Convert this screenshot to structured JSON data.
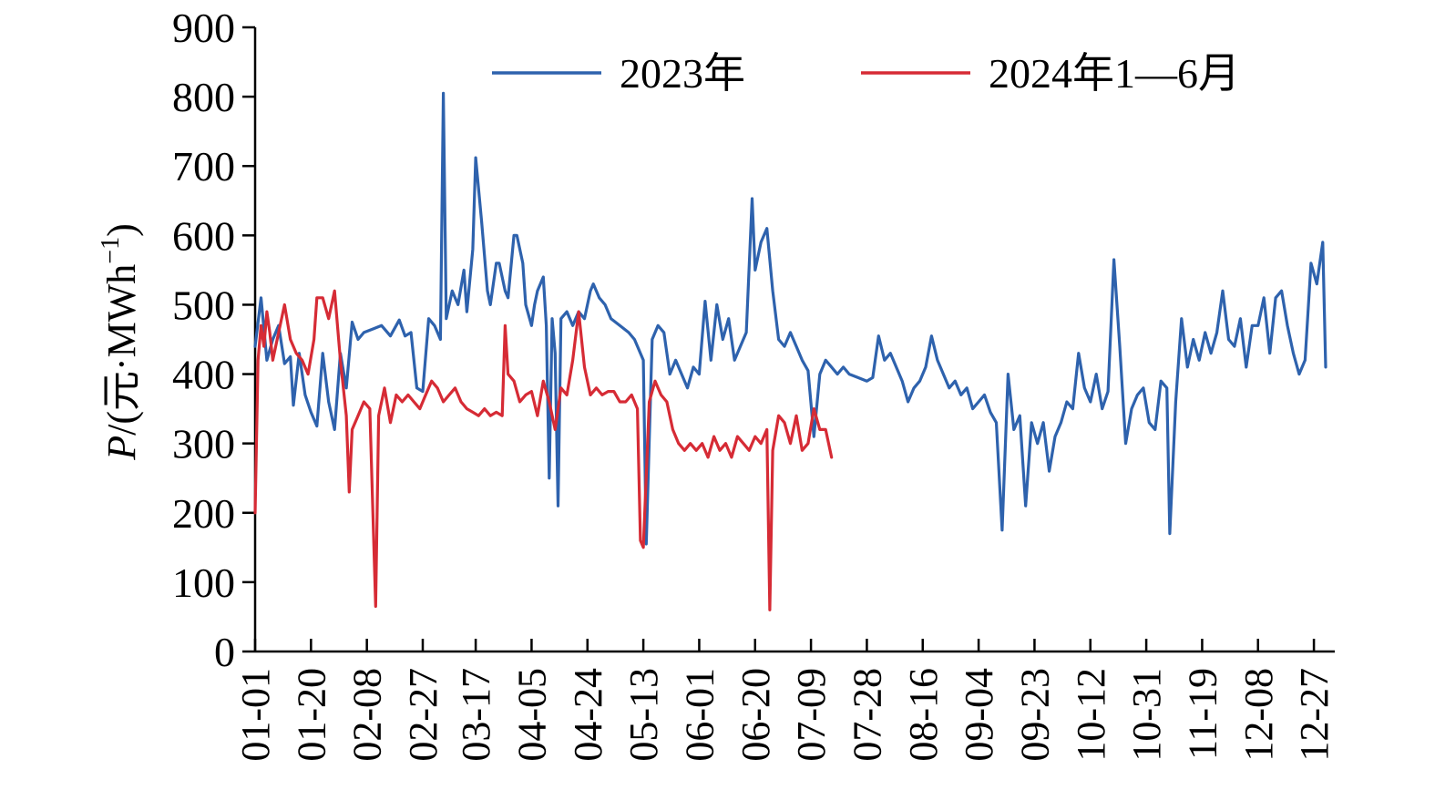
{
  "chart_data": {
    "type": "line",
    "xlabel": "",
    "ylabel": {
      "var": "P",
      "prefix": "/(元·MWh",
      "sup": "−1",
      "suffix": ")"
    },
    "ylim": [
      0,
      900
    ],
    "yticks": [
      "0",
      "100",
      "200",
      "300",
      "400",
      "500",
      "600",
      "700",
      "800",
      "900"
    ],
    "x_tick_labels": [
      "01-01",
      "01-20",
      "02-08",
      "02-27",
      "03-17",
      "04-05",
      "04-24",
      "05-13",
      "06-01",
      "06-20",
      "07-09",
      "07-28",
      "08-16",
      "09-04",
      "09-23",
      "10-12",
      "10-31",
      "11-19",
      "12-08",
      "12-27"
    ],
    "x_tick_days": [
      0,
      19,
      38,
      57,
      75,
      94,
      113,
      132,
      151,
      170,
      189,
      208,
      227,
      246,
      265,
      284,
      303,
      322,
      341,
      360
    ],
    "x_unit": "day of year (0 = 01-01)",
    "xlim": [
      0,
      364
    ],
    "legend_position": "top",
    "grid": false,
    "series": [
      {
        "name": "2023年",
        "color": "#2e62ad",
        "points": [
          [
            0,
            440
          ],
          [
            2,
            510
          ],
          [
            4,
            420
          ],
          [
            6,
            450
          ],
          [
            8,
            470
          ],
          [
            10,
            415
          ],
          [
            12,
            425
          ],
          [
            13,
            355
          ],
          [
            15,
            430
          ],
          [
            17,
            370
          ],
          [
            19,
            345
          ],
          [
            21,
            325
          ],
          [
            23,
            430
          ],
          [
            25,
            360
          ],
          [
            27,
            320
          ],
          [
            29,
            430
          ],
          [
            31,
            380
          ],
          [
            33,
            475
          ],
          [
            35,
            450
          ],
          [
            37,
            460
          ],
          [
            40,
            465
          ],
          [
            43,
            470
          ],
          [
            46,
            455
          ],
          [
            49,
            478
          ],
          [
            51,
            455
          ],
          [
            53,
            460
          ],
          [
            55,
            380
          ],
          [
            57,
            375
          ],
          [
            59,
            480
          ],
          [
            61,
            470
          ],
          [
            63,
            450
          ],
          [
            64,
            805
          ],
          [
            65,
            480
          ],
          [
            67,
            520
          ],
          [
            69,
            500
          ],
          [
            71,
            550
          ],
          [
            72,
            490
          ],
          [
            74,
            580
          ],
          [
            75,
            712
          ],
          [
            77,
            620
          ],
          [
            79,
            520
          ],
          [
            80,
            500
          ],
          [
            82,
            560
          ],
          [
            83,
            560
          ],
          [
            85,
            520
          ],
          [
            86,
            510
          ],
          [
            88,
            600
          ],
          [
            89,
            600
          ],
          [
            91,
            560
          ],
          [
            92,
            500
          ],
          [
            94,
            470
          ],
          [
            95,
            500
          ],
          [
            96,
            520
          ],
          [
            98,
            540
          ],
          [
            99,
            470
          ],
          [
            100,
            250
          ],
          [
            101,
            480
          ],
          [
            102,
            430
          ],
          [
            103,
            210
          ],
          [
            104,
            480
          ],
          [
            106,
            490
          ],
          [
            108,
            470
          ],
          [
            110,
            490
          ],
          [
            112,
            480
          ],
          [
            114,
            520
          ],
          [
            115,
            530
          ],
          [
            117,
            510
          ],
          [
            119,
            500
          ],
          [
            121,
            480
          ],
          [
            124,
            470
          ],
          [
            127,
            460
          ],
          [
            129,
            450
          ],
          [
            131,
            430
          ],
          [
            132,
            420
          ],
          [
            133,
            155
          ],
          [
            135,
            450
          ],
          [
            137,
            470
          ],
          [
            139,
            460
          ],
          [
            141,
            400
          ],
          [
            143,
            420
          ],
          [
            145,
            400
          ],
          [
            147,
            380
          ],
          [
            149,
            410
          ],
          [
            151,
            400
          ],
          [
            153,
            505
          ],
          [
            155,
            420
          ],
          [
            157,
            500
          ],
          [
            159,
            450
          ],
          [
            161,
            480
          ],
          [
            163,
            420
          ],
          [
            165,
            440
          ],
          [
            167,
            460
          ],
          [
            169,
            653
          ],
          [
            170,
            550
          ],
          [
            172,
            590
          ],
          [
            174,
            610
          ],
          [
            176,
            520
          ],
          [
            178,
            450
          ],
          [
            180,
            440
          ],
          [
            182,
            460
          ],
          [
            184,
            440
          ],
          [
            186,
            420
          ],
          [
            188,
            405
          ],
          [
            190,
            310
          ],
          [
            192,
            400
          ],
          [
            194,
            420
          ],
          [
            196,
            410
          ],
          [
            198,
            400
          ],
          [
            200,
            410
          ],
          [
            202,
            400
          ],
          [
            205,
            395
          ],
          [
            208,
            390
          ],
          [
            210,
            395
          ],
          [
            212,
            455
          ],
          [
            214,
            420
          ],
          [
            216,
            430
          ],
          [
            218,
            410
          ],
          [
            220,
            390
          ],
          [
            222,
            360
          ],
          [
            224,
            380
          ],
          [
            226,
            390
          ],
          [
            228,
            410
          ],
          [
            230,
            455
          ],
          [
            232,
            420
          ],
          [
            234,
            400
          ],
          [
            236,
            380
          ],
          [
            238,
            390
          ],
          [
            240,
            370
          ],
          [
            242,
            380
          ],
          [
            244,
            350
          ],
          [
            246,
            360
          ],
          [
            248,
            370
          ],
          [
            250,
            345
          ],
          [
            252,
            330
          ],
          [
            254,
            175
          ],
          [
            256,
            400
          ],
          [
            258,
            320
          ],
          [
            260,
            340
          ],
          [
            262,
            210
          ],
          [
            264,
            330
          ],
          [
            266,
            300
          ],
          [
            268,
            330
          ],
          [
            270,
            260
          ],
          [
            272,
            310
          ],
          [
            274,
            330
          ],
          [
            276,
            360
          ],
          [
            278,
            350
          ],
          [
            280,
            430
          ],
          [
            282,
            380
          ],
          [
            284,
            360
          ],
          [
            286,
            400
          ],
          [
            288,
            350
          ],
          [
            290,
            375
          ],
          [
            292,
            565
          ],
          [
            294,
            440
          ],
          [
            296,
            300
          ],
          [
            298,
            350
          ],
          [
            300,
            370
          ],
          [
            302,
            380
          ],
          [
            304,
            330
          ],
          [
            306,
            320
          ],
          [
            308,
            390
          ],
          [
            310,
            380
          ],
          [
            311,
            170
          ],
          [
            313,
            360
          ],
          [
            315,
            480
          ],
          [
            317,
            410
          ],
          [
            319,
            450
          ],
          [
            321,
            420
          ],
          [
            323,
            460
          ],
          [
            325,
            430
          ],
          [
            327,
            460
          ],
          [
            329,
            520
          ],
          [
            331,
            450
          ],
          [
            333,
            440
          ],
          [
            335,
            480
          ],
          [
            337,
            410
          ],
          [
            339,
            470
          ],
          [
            341,
            470
          ],
          [
            343,
            510
          ],
          [
            345,
            430
          ],
          [
            347,
            510
          ],
          [
            349,
            520
          ],
          [
            351,
            470
          ],
          [
            353,
            430
          ],
          [
            355,
            400
          ],
          [
            357,
            420
          ],
          [
            359,
            560
          ],
          [
            361,
            530
          ],
          [
            363,
            590
          ],
          [
            364,
            410
          ]
        ]
      },
      {
        "name": "2024年1—6月",
        "color": "#d62b35",
        "points": [
          [
            0,
            200
          ],
          [
            1,
            420
          ],
          [
            2,
            470
          ],
          [
            3,
            440
          ],
          [
            4,
            490
          ],
          [
            5,
            460
          ],
          [
            6,
            420
          ],
          [
            8,
            460
          ],
          [
            10,
            500
          ],
          [
            12,
            450
          ],
          [
            14,
            430
          ],
          [
            16,
            420
          ],
          [
            18,
            400
          ],
          [
            20,
            450
          ],
          [
            21,
            510
          ],
          [
            23,
            510
          ],
          [
            25,
            480
          ],
          [
            27,
            520
          ],
          [
            29,
            420
          ],
          [
            31,
            340
          ],
          [
            32,
            230
          ],
          [
            33,
            320
          ],
          [
            35,
            340
          ],
          [
            37,
            360
          ],
          [
            39,
            350
          ],
          [
            41,
            65
          ],
          [
            42,
            340
          ],
          [
            44,
            380
          ],
          [
            46,
            330
          ],
          [
            48,
            370
          ],
          [
            50,
            360
          ],
          [
            52,
            370
          ],
          [
            54,
            360
          ],
          [
            56,
            350
          ],
          [
            58,
            370
          ],
          [
            60,
            390
          ],
          [
            62,
            380
          ],
          [
            64,
            360
          ],
          [
            66,
            370
          ],
          [
            68,
            380
          ],
          [
            70,
            360
          ],
          [
            72,
            350
          ],
          [
            74,
            345
          ],
          [
            76,
            340
          ],
          [
            78,
            350
          ],
          [
            80,
            340
          ],
          [
            82,
            345
          ],
          [
            84,
            340
          ],
          [
            85,
            470
          ],
          [
            86,
            400
          ],
          [
            88,
            390
          ],
          [
            90,
            360
          ],
          [
            92,
            370
          ],
          [
            94,
            375
          ],
          [
            96,
            340
          ],
          [
            98,
            390
          ],
          [
            100,
            360
          ],
          [
            102,
            320
          ],
          [
            104,
            380
          ],
          [
            106,
            370
          ],
          [
            108,
            420
          ],
          [
            110,
            490
          ],
          [
            112,
            410
          ],
          [
            114,
            370
          ],
          [
            116,
            380
          ],
          [
            118,
            370
          ],
          [
            120,
            375
          ],
          [
            122,
            375
          ],
          [
            124,
            360
          ],
          [
            126,
            360
          ],
          [
            128,
            370
          ],
          [
            130,
            350
          ],
          [
            131,
            160
          ],
          [
            132,
            150
          ],
          [
            134,
            360
          ],
          [
            136,
            390
          ],
          [
            138,
            370
          ],
          [
            140,
            360
          ],
          [
            142,
            320
          ],
          [
            144,
            300
          ],
          [
            146,
            290
          ],
          [
            148,
            300
          ],
          [
            150,
            290
          ],
          [
            152,
            300
          ],
          [
            154,
            280
          ],
          [
            156,
            310
          ],
          [
            158,
            290
          ],
          [
            160,
            300
          ],
          [
            162,
            280
          ],
          [
            164,
            310
          ],
          [
            166,
            300
          ],
          [
            168,
            290
          ],
          [
            170,
            310
          ],
          [
            172,
            300
          ],
          [
            174,
            320
          ],
          [
            175,
            60
          ],
          [
            176,
            290
          ],
          [
            178,
            340
          ],
          [
            180,
            330
          ],
          [
            182,
            300
          ],
          [
            184,
            340
          ],
          [
            186,
            290
          ],
          [
            188,
            300
          ],
          [
            190,
            350
          ],
          [
            192,
            320
          ],
          [
            194,
            320
          ],
          [
            196,
            280
          ]
        ]
      }
    ]
  }
}
